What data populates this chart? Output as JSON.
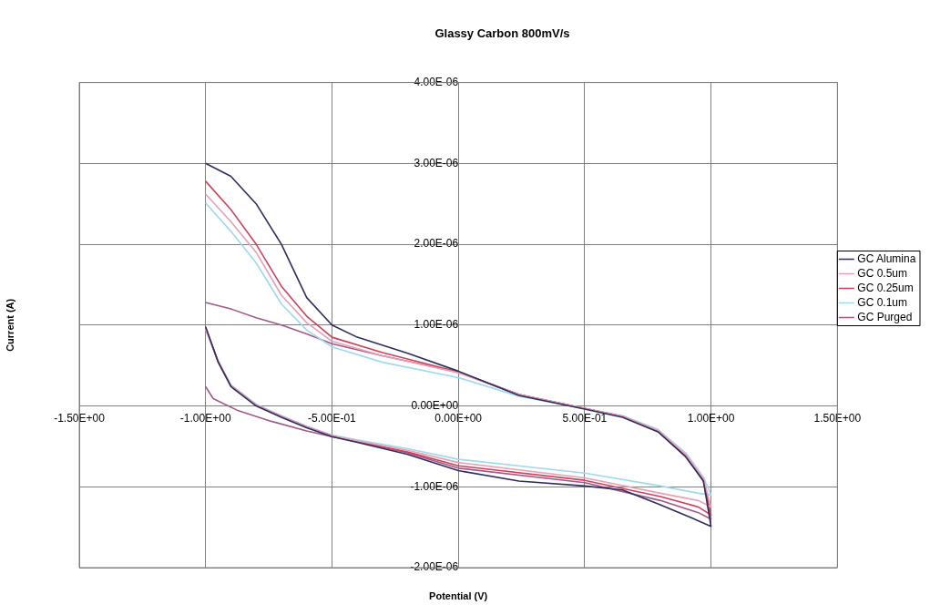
{
  "chart_data": {
    "type": "line",
    "title": "Glassy Carbon 800mV/s",
    "xlabel": "Potential (V)",
    "ylabel": "Current (A)",
    "xlim": [
      -1.5,
      1.5
    ],
    "xticks": [
      {
        "value": -1.5,
        "label": "-1.50E+00"
      },
      {
        "value": -1,
        "label": "-1.00E+00"
      },
      {
        "value": -0.5,
        "label": "-5.00E-01"
      },
      {
        "value": 0,
        "label": "0.00E+00"
      },
      {
        "value": 0.5,
        "label": "5.00E-01"
      },
      {
        "value": 1,
        "label": "1.00E+00"
      },
      {
        "value": 1.5,
        "label": "1.50E+00"
      }
    ],
    "ylim": [
      -2e-06,
      4e-06
    ],
    "yticks": [
      {
        "value": -2e-06,
        "label": "-2.00E-06"
      },
      {
        "value": -1e-06,
        "label": "-1.00E-06"
      },
      {
        "value": 0,
        "label": "0.00E+00"
      },
      {
        "value": 1e-06,
        "label": "1.00E-06"
      },
      {
        "value": 2e-06,
        "label": "2.00E-06"
      },
      {
        "value": 3e-06,
        "label": "3.00E-06"
      },
      {
        "value": 4e-06,
        "label": "4.00E-06"
      }
    ],
    "grid": true,
    "legend": "right",
    "marker": "none",
    "line_style": "solid",
    "series": [
      {
        "name": "GC Alumina",
        "color": "#2e2e5e",
        "x": [
          -1,
          -0.9,
          -0.8,
          -0.7,
          -0.6,
          -0.5,
          -0.4,
          -0.2,
          0,
          0.24,
          0.5,
          0.65,
          0.79,
          0.9,
          0.97,
          1,
          0.92,
          0.79,
          0.65,
          0.5,
          0.24,
          0,
          -0.2,
          -0.4,
          -0.5,
          -0.6,
          -0.7,
          -0.8,
          -0.9,
          -0.95,
          -1
        ],
        "values": [
          3e-06,
          2.84e-06,
          2.5e-06,
          2e-06,
          1.34e-06,
          1e-06,
          8.5e-07,
          6.5e-07,
          4.3e-07,
          1.3e-07,
          -4e-08,
          -1.4e-07,
          -3.2e-07,
          -6.3e-07,
          -9.3e-07,
          -1.49e-06,
          -1.38e-06,
          -1.21e-06,
          -1.04e-06,
          -9.9e-07,
          -9.3e-07,
          -8e-07,
          -6e-07,
          -4.5e-07,
          -3.8e-07,
          -2.7e-07,
          -1.4e-07,
          0,
          2.4e-07,
          5.4e-07,
          9.8e-07
        ]
      },
      {
        "name": "GC 0.5um",
        "color": "#e8a0b4",
        "x": [
          -1,
          -0.9,
          -0.8,
          -0.7,
          -0.6,
          -0.5,
          -0.3,
          0,
          0.24,
          0.5,
          0.65,
          0.79,
          0.9,
          0.97,
          1,
          0.95,
          0.8,
          0.5,
          0,
          -0.2,
          -0.4,
          -0.5,
          -0.6,
          -0.7,
          -0.8,
          -0.9,
          -0.95,
          -1
        ],
        "values": [
          2.62e-06,
          2.28e-06,
          1.9e-06,
          1.37e-06,
          1.03e-06,
          8e-07,
          6.2e-07,
          4.1e-07,
          1.4e-07,
          -3e-08,
          -1.3e-07,
          -3e-07,
          -6e-07,
          -9e-07,
          -1.25e-06,
          -1.17e-06,
          -1.08e-06,
          -8.9e-07,
          -7e-07,
          -5.5e-07,
          -4.3e-07,
          -3.7e-07,
          -2.6e-07,
          -1.3e-07,
          1e-08,
          2.5e-07,
          5.4e-07,
          9.5e-07
        ]
      },
      {
        "name": "GC 0.25um",
        "color": "#d0405a",
        "x": [
          -1,
          -0.9,
          -0.8,
          -0.7,
          -0.6,
          -0.5,
          -0.3,
          0,
          0.24,
          0.5,
          0.65,
          0.79,
          0.9,
          0.97,
          1,
          0.95,
          0.8,
          0.5,
          0,
          -0.2,
          -0.4,
          -0.5,
          -0.6,
          -0.7,
          -0.8,
          -0.9,
          -0.95,
          -1
        ],
        "values": [
          2.78e-06,
          2.43e-06,
          2e-06,
          1.48e-06,
          1.11e-06,
          8.5e-07,
          6.6e-07,
          4.2e-07,
          1.4e-07,
          -3e-08,
          -1.3e-07,
          -3.1e-07,
          -6.1e-07,
          -9.2e-07,
          -1.35e-06,
          -1.25e-06,
          -1.12e-06,
          -9.2e-07,
          -7.4e-07,
          -5.7e-07,
          -4.4e-07,
          -3.7e-07,
          -2.6e-07,
          -1.3e-07,
          1e-08,
          2.5e-07,
          5.5e-07,
          9.6e-07
        ]
      },
      {
        "name": "GC 0.1um",
        "color": "#a0d8ec",
        "x": [
          -1,
          -0.9,
          -0.8,
          -0.7,
          -0.6,
          -0.5,
          -0.3,
          0,
          0.24,
          0.5,
          0.65,
          0.79,
          0.9,
          0.97,
          1,
          0.95,
          0.8,
          0.5,
          0,
          -0.2,
          -0.4,
          -0.5,
          -0.6,
          -0.7,
          -0.8,
          -0.9,
          -0.95,
          -1
        ],
        "values": [
          2.51e-06,
          2.16e-06,
          1.77e-06,
          1.26e-06,
          9.4e-07,
          7.3e-07,
          5.4e-07,
          3.5e-07,
          1.2e-07,
          -3e-08,
          -1.2e-07,
          -2.9e-07,
          -5.8e-07,
          -8.8e-07,
          -1.1e-06,
          -1.08e-06,
          -9.9e-07,
          -8.3e-07,
          -6.6e-07,
          -5.3e-07,
          -4.2e-07,
          -3.6e-07,
          -2.5e-07,
          -1.2e-07,
          2e-08,
          2.6e-07,
          5.5e-07,
          9.5e-07
        ]
      },
      {
        "name": "GC Purged",
        "color": "#a05a8a",
        "x": [
          -1,
          -0.9,
          -0.8,
          -0.7,
          -0.6,
          -0.5,
          -0.3,
          0,
          0.24,
          0.5,
          0.65,
          0.79,
          0.9,
          0.97,
          1,
          0.95,
          0.8,
          0.5,
          0,
          -0.2,
          -0.4,
          -0.5,
          -0.6,
          -0.74,
          -0.87,
          -0.97,
          -1
        ],
        "values": [
          1.28e-06,
          1.2e-06,
          1.09e-06,
          1e-06,
          8.9e-07,
          7.7e-07,
          6.2e-07,
          4.2e-07,
          1.4e-07,
          -3e-08,
          -1.3e-07,
          -3.1e-07,
          -6.2e-07,
          -9.3e-07,
          -1.4e-06,
          -1.32e-06,
          -1.17e-06,
          -9.5e-07,
          -7.7e-07,
          -5.8e-07,
          -4.4e-07,
          -3.8e-07,
          -3.1e-07,
          -1.9e-07,
          -6e-08,
          9e-08,
          2.4e-07
        ]
      }
    ]
  }
}
